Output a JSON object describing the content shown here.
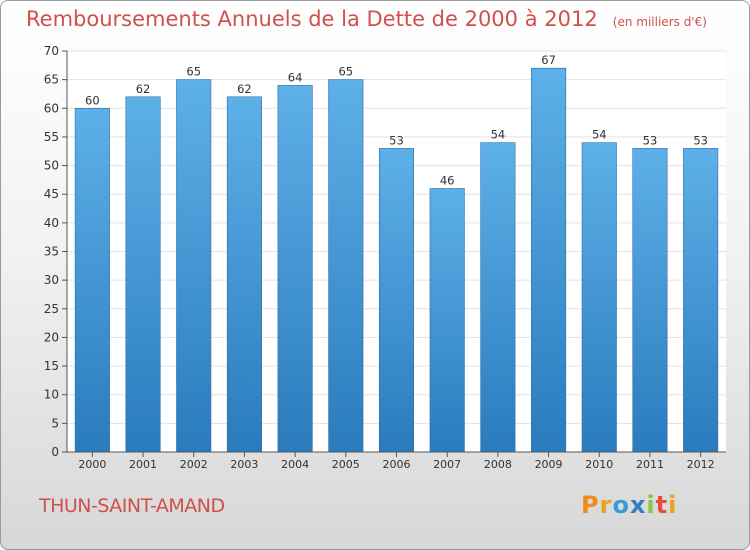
{
  "chart_data": {
    "type": "bar",
    "title": "Remboursements Annuels de la Dette de 2000 à 2012",
    "subtitle": "(en milliers d'€)",
    "categories": [
      "2000",
      "2001",
      "2002",
      "2003",
      "2004",
      "2005",
      "2006",
      "2007",
      "2008",
      "2009",
      "2010",
      "2011",
      "2012"
    ],
    "values": [
      60,
      62,
      65,
      62,
      64,
      65,
      53,
      46,
      54,
      67,
      54,
      53,
      53
    ],
    "ylim": [
      0,
      70
    ],
    "yticks": [
      0,
      5,
      10,
      15,
      20,
      25,
      30,
      35,
      40,
      45,
      50,
      55,
      60,
      65,
      70
    ],
    "xlabel": "",
    "ylabel": "",
    "grid": true,
    "bar_color_top": "#5eb0e8",
    "bar_color_bottom": "#2a7bbd"
  },
  "commune": "THUN-SAINT-AMAND",
  "logo": {
    "letters": [
      "P",
      "r",
      "o",
      "x",
      "i",
      "t",
      "i"
    ],
    "colors": [
      "#f08a1c",
      "#f0a020",
      "#3a9ad9",
      "#2e7fc4",
      "#8dc63f",
      "#e84c3d",
      "#f0a020"
    ]
  }
}
